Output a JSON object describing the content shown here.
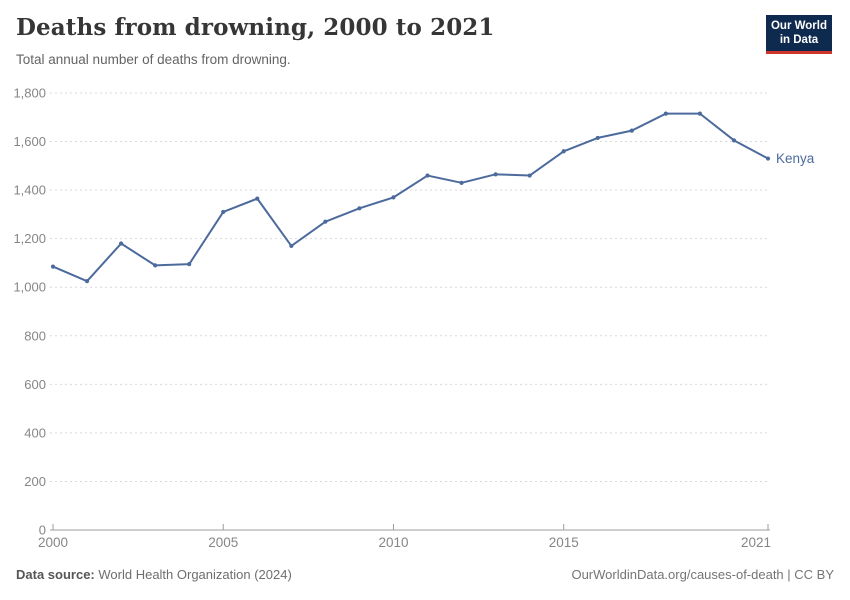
{
  "header": {
    "title": "Deaths from drowning, 2000 to 2021",
    "subtitle": "Total annual number of deaths from drowning."
  },
  "logo": {
    "line1": "Our World",
    "line2": "in Data",
    "bg_color": "#0e2a4e",
    "accent_color": "#d0352a"
  },
  "chart_data": {
    "type": "line",
    "title": "Deaths from drowning, 2000 to 2021",
    "subtitle": "Total annual number of deaths from drowning.",
    "x": [
      2000,
      2001,
      2002,
      2003,
      2004,
      2005,
      2006,
      2007,
      2008,
      2009,
      2010,
      2011,
      2012,
      2013,
      2014,
      2015,
      2016,
      2017,
      2018,
      2019,
      2020,
      2021
    ],
    "series": [
      {
        "name": "Kenya",
        "color": "#4c6a9c",
        "values": [
          1085,
          1025,
          1180,
          1090,
          1095,
          1310,
          1365,
          1170,
          1270,
          1325,
          1370,
          1460,
          1430,
          1465,
          1460,
          1560,
          1615,
          1645,
          1715,
          1715,
          1605,
          1530
        ]
      }
    ],
    "ylim": [
      0,
      1800
    ],
    "yticks": [
      0,
      200,
      400,
      600,
      800,
      1000,
      1200,
      1400,
      1600,
      1800
    ],
    "xticks": [
      2000,
      2005,
      2010,
      2015,
      2021
    ],
    "grid": "horizontal-dashed",
    "legend": "end-of-line-label",
    "axis_color": "#9c9c9c",
    "grid_color": "#d9d9d9",
    "tick_label_color": "#868686"
  },
  "footer": {
    "source_label": "Data source:",
    "source_value": "World Health Organization (2024)",
    "citation": "OurWorldinData.org/causes-of-death | CC BY"
  }
}
